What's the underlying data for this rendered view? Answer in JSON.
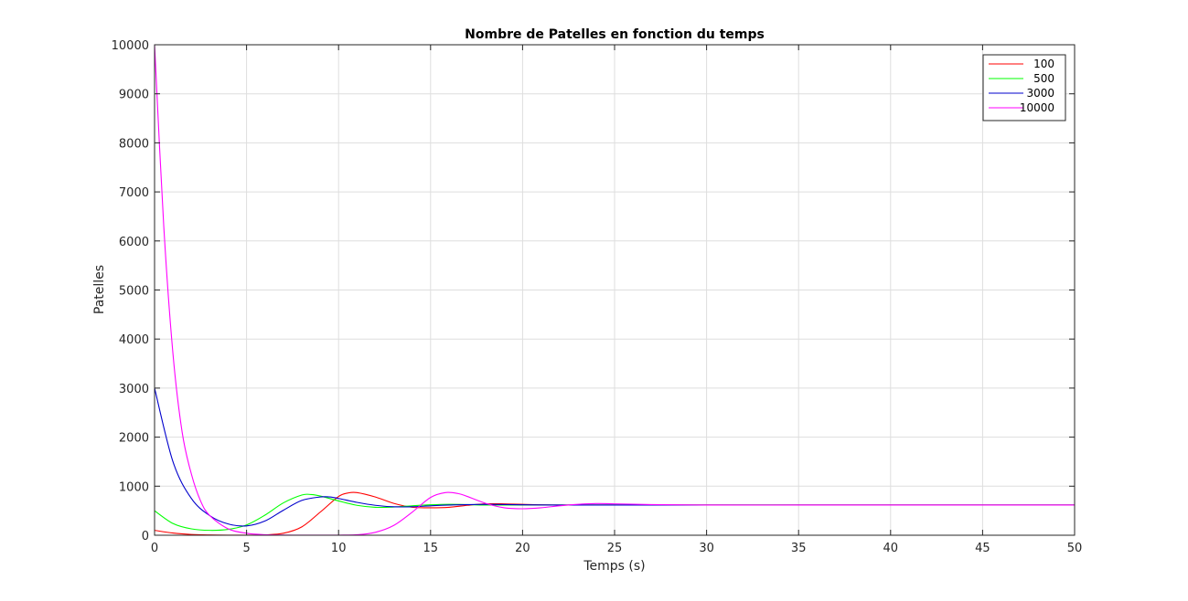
{
  "chart_data": {
    "type": "line",
    "title": "Nombre de Patelles en fonction du temps",
    "xlabel": "Temps (s)",
    "ylabel": "Patelles",
    "xlim": [
      0,
      50
    ],
    "ylim": [
      0,
      10000
    ],
    "xticks": [
      0,
      5,
      10,
      15,
      20,
      25,
      30,
      35,
      40,
      45,
      50
    ],
    "yticks": [
      0,
      1000,
      2000,
      3000,
      4000,
      5000,
      6000,
      7000,
      8000,
      9000,
      10000
    ],
    "grid": true,
    "legend_position": "top-right",
    "series": [
      {
        "name": "100",
        "color": "#ff0000",
        "x": [
          0,
          1,
          2,
          3,
          4,
          5,
          6,
          7,
          8,
          9,
          10,
          10.5,
          11,
          12,
          13,
          14,
          15,
          16,
          17,
          18,
          19,
          20,
          22,
          25,
          30,
          35,
          40,
          45,
          50
        ],
        "y": [
          100,
          45,
          15,
          5,
          2,
          2,
          8,
          40,
          170,
          470,
          790,
          860,
          870,
          780,
          650,
          570,
          560,
          570,
          610,
          640,
          640,
          630,
          615,
          615,
          615,
          615,
          615,
          615,
          615
        ]
      },
      {
        "name": "500",
        "color": "#00ff00",
        "x": [
          0,
          1,
          2,
          3,
          4,
          5,
          6,
          7,
          8,
          8.5,
          9,
          10,
          11,
          12,
          13,
          14,
          15,
          16,
          17,
          18,
          20,
          22,
          25,
          30,
          35,
          40,
          45,
          50
        ],
        "y": [
          500,
          240,
          130,
          100,
          120,
          210,
          410,
          660,
          820,
          830,
          800,
          700,
          610,
          570,
          575,
          600,
          620,
          630,
          625,
          615,
          615,
          615,
          615,
          615,
          615,
          615,
          615,
          615
        ]
      },
      {
        "name": "3000",
        "color": "#0000cc",
        "x": [
          0,
          1,
          2,
          3,
          4,
          5,
          6,
          7,
          8,
          9,
          9.5,
          10,
          11,
          12,
          13,
          14,
          15,
          16,
          18,
          20,
          22,
          25,
          30,
          35,
          40,
          45,
          50
        ],
        "y": [
          3000,
          1500,
          750,
          400,
          230,
          190,
          290,
          510,
          710,
          780,
          780,
          750,
          670,
          610,
          580,
          580,
          600,
          615,
          630,
          620,
          615,
          615,
          615,
          615,
          615,
          615,
          615
        ]
      },
      {
        "name": "10000",
        "color": "#ff00ff",
        "x": [
          0,
          0.5,
          1,
          1.5,
          2,
          2.5,
          3,
          4,
          5,
          6,
          7,
          8,
          9,
          10,
          11,
          12,
          13,
          14,
          15,
          15.8,
          16.5,
          17,
          18,
          19,
          20,
          21,
          22,
          23,
          24,
          25,
          27,
          30,
          35,
          40,
          45,
          50
        ],
        "y": [
          10000,
          6300,
          3700,
          2100,
          1250,
          700,
          400,
          130,
          40,
          10,
          3,
          1,
          1,
          2,
          10,
          60,
          200,
          470,
          770,
          870,
          850,
          790,
          650,
          560,
          540,
          560,
          600,
          630,
          645,
          640,
          625,
          615,
          615,
          615,
          615,
          615
        ]
      }
    ]
  }
}
